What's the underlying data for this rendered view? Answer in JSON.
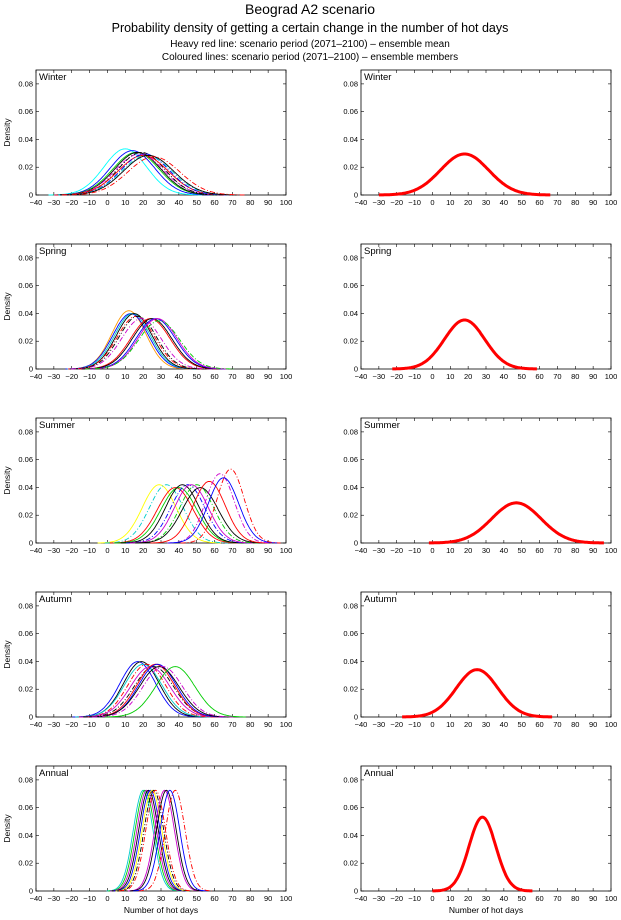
{
  "header": {
    "title": "Beograd A2 scenario",
    "subtitle": "Probability density of getting a certain change in the number of hot days",
    "note1": "Heavy red line: scenario period (2071–2100) – ensemble mean",
    "note2": "Coloured lines: scenario period (2071–2100) – ensemble members"
  },
  "axes": {
    "xlabel": "Number of hot days",
    "ylabel": "Density",
    "xlim": [
      -40,
      100
    ],
    "ylim": [
      0,
      0.09
    ],
    "xticks": [
      "-40",
      "-30",
      "-20",
      "-10",
      "0",
      "10",
      "20",
      "30",
      "40",
      "50",
      "60",
      "70",
      "80",
      "90",
      "100"
    ],
    "yticks": [
      "0",
      "0.02",
      "0.04",
      "0.06",
      "0.08"
    ]
  },
  "colors": {
    "mean_line": "#ff0000",
    "member_colors": [
      "#0000ff",
      "#00cc00",
      "#ff0000",
      "#00cccc",
      "#cc00cc",
      "#cccc00",
      "#000000"
    ]
  },
  "chart_data": [
    {
      "type": "line",
      "panel": "Winter ensemble members",
      "season_label": "Winter",
      "series": [
        {
          "mean": 10,
          "sd": 12,
          "color": "#00ffff",
          "style": "solid"
        },
        {
          "mean": 14,
          "sd": 12.5,
          "color": "#0000ff",
          "style": "solid"
        },
        {
          "mean": 16,
          "sd": 13,
          "color": "#00cc00",
          "style": "solid"
        },
        {
          "mean": 17,
          "sd": 13,
          "color": "#000000",
          "style": "solid"
        },
        {
          "mean": 18,
          "sd": 13.5,
          "color": "#cc00cc",
          "style": "dashdot"
        },
        {
          "mean": 19,
          "sd": 13,
          "color": "#000000",
          "style": "dashdot"
        },
        {
          "mean": 20,
          "sd": 14,
          "color": "#ff0000",
          "style": "solid"
        },
        {
          "mean": 21,
          "sd": 13.5,
          "color": "#0000ff",
          "style": "dashdot"
        },
        {
          "mean": 22,
          "sd": 14,
          "color": "#00cccc",
          "style": "dashdot"
        },
        {
          "mean": 23,
          "sd": 14,
          "color": "#000000",
          "style": "solid"
        },
        {
          "mean": 26,
          "sd": 14.5,
          "color": "#ff0000",
          "style": "dashdot"
        }
      ]
    },
    {
      "type": "line",
      "panel": "Winter ensemble mean",
      "season_label": "Winter",
      "series": [
        {
          "mean": 18,
          "sd": 13.5,
          "color": "#ff0000",
          "style": "heavy"
        }
      ]
    },
    {
      "type": "line",
      "panel": "Spring ensemble members",
      "season_label": "Spring",
      "series": [
        {
          "mean": 12,
          "sd": 9.5,
          "color": "#ff9900",
          "style": "solid"
        },
        {
          "mean": 13,
          "sd": 10,
          "color": "#0000ff",
          "style": "solid"
        },
        {
          "mean": 14,
          "sd": 10,
          "color": "#00cccc",
          "style": "solid"
        },
        {
          "mean": 15,
          "sd": 10,
          "color": "#000000",
          "style": "solid"
        },
        {
          "mean": 16,
          "sd": 10.5,
          "color": "#ff0000",
          "style": "dashdot"
        },
        {
          "mean": 17,
          "sd": 10.5,
          "color": "#000000",
          "style": "dashdot"
        },
        {
          "mean": 19,
          "sd": 11,
          "color": "#cc00cc",
          "style": "dashdot"
        },
        {
          "mean": 24,
          "sd": 11,
          "color": "#ff0000",
          "style": "solid"
        },
        {
          "mean": 25,
          "sd": 11,
          "color": "#000000",
          "style": "solid"
        },
        {
          "mean": 27,
          "sd": 11,
          "color": "#0000ff",
          "style": "solid"
        },
        {
          "mean": 28,
          "sd": 11,
          "color": "#cc00cc",
          "style": "solid"
        },
        {
          "mean": 29,
          "sd": 11.5,
          "color": "#00cc00",
          "style": "dashdot"
        }
      ]
    },
    {
      "type": "line",
      "panel": "Spring ensemble mean",
      "season_label": "Spring",
      "series": [
        {
          "mean": 18,
          "sd": 11.3,
          "color": "#ff0000",
          "style": "heavy"
        }
      ]
    },
    {
      "type": "line",
      "panel": "Summer ensemble members",
      "season_label": "Summer",
      "series": [
        {
          "mean": 29,
          "sd": 9.5,
          "color": "#ffff00",
          "style": "solid"
        },
        {
          "mean": 33,
          "sd": 9.5,
          "color": "#00cccc",
          "style": "dashdot"
        },
        {
          "mean": 38,
          "sd": 10,
          "color": "#ff0000",
          "style": "solid"
        },
        {
          "mean": 40,
          "sd": 10,
          "color": "#00cc00",
          "style": "solid"
        },
        {
          "mean": 42,
          "sd": 9.5,
          "color": "#000000",
          "style": "solid"
        },
        {
          "mean": 45,
          "sd": 9.5,
          "color": "#0000ff",
          "style": "dashdot"
        },
        {
          "mean": 47,
          "sd": 9.5,
          "color": "#cc00cc",
          "style": "solid"
        },
        {
          "mean": 50,
          "sd": 9.5,
          "color": "#00cc00",
          "style": "dashdot"
        },
        {
          "mean": 52,
          "sd": 10,
          "color": "#000000",
          "style": "solid"
        },
        {
          "mean": 57,
          "sd": 9,
          "color": "#ff0000",
          "style": "solid"
        },
        {
          "mean": 63,
          "sd": 8,
          "color": "#cc00cc",
          "style": "dashdot"
        },
        {
          "mean": 65,
          "sd": 8.5,
          "color": "#0000ff",
          "style": "solid"
        },
        {
          "mean": 69,
          "sd": 7.5,
          "color": "#ff0000",
          "style": "dashdot"
        }
      ]
    },
    {
      "type": "line",
      "panel": "Summer ensemble mean",
      "season_label": "Summer",
      "series": [
        {
          "mean": 47,
          "sd": 13.8,
          "color": "#ff0000",
          "style": "heavy"
        }
      ]
    },
    {
      "type": "line",
      "panel": "Autumn ensemble members",
      "season_label": "Autumn",
      "series": [
        {
          "mean": 17,
          "sd": 10,
          "color": "#0000ff",
          "style": "solid"
        },
        {
          "mean": 19,
          "sd": 10,
          "color": "#000000",
          "style": "solid"
        },
        {
          "mean": 20,
          "sd": 10.5,
          "color": "#00cccc",
          "style": "solid"
        },
        {
          "mean": 22,
          "sd": 10.5,
          "color": "#ff0000",
          "style": "dashdot"
        },
        {
          "mean": 24,
          "sd": 11,
          "color": "#cc00cc",
          "style": "solid"
        },
        {
          "mean": 26,
          "sd": 11,
          "color": "#000000",
          "style": "dashdot"
        },
        {
          "mean": 27,
          "sd": 10.5,
          "color": "#ff0000",
          "style": "solid"
        },
        {
          "mean": 28,
          "sd": 10.5,
          "color": "#0000ff",
          "style": "solid"
        },
        {
          "mean": 29,
          "sd": 11,
          "color": "#000000",
          "style": "solid"
        },
        {
          "mean": 31,
          "sd": 11,
          "color": "#cc00cc",
          "style": "dashdot"
        },
        {
          "mean": 38,
          "sd": 11,
          "color": "#00cc00",
          "style": "solid"
        }
      ]
    },
    {
      "type": "line",
      "panel": "Autumn ensemble mean",
      "season_label": "Autumn",
      "series": [
        {
          "mean": 25,
          "sd": 11.7,
          "color": "#ff0000",
          "style": "heavy"
        }
      ]
    },
    {
      "type": "line",
      "panel": "Annual ensemble members",
      "season_label": "Annual",
      "series": [
        {
          "mean": 20,
          "sd": 5.5,
          "color": "#00cccc",
          "style": "solid"
        },
        {
          "mean": 21,
          "sd": 5.5,
          "color": "#00cc00",
          "style": "solid"
        },
        {
          "mean": 22,
          "sd": 5.5,
          "color": "#cc00cc",
          "style": "solid"
        },
        {
          "mean": 23,
          "sd": 5.5,
          "color": "#000000",
          "style": "solid"
        },
        {
          "mean": 24,
          "sd": 5.5,
          "color": "#0000ff",
          "style": "solid"
        },
        {
          "mean": 25,
          "sd": 5.5,
          "color": "#ffff00",
          "style": "solid"
        },
        {
          "mean": 26,
          "sd": 5.5,
          "color": "#000000",
          "style": "dashdot"
        },
        {
          "mean": 27,
          "sd": 5.5,
          "color": "#ff0000",
          "style": "dashdot"
        },
        {
          "mean": 32,
          "sd": 5.5,
          "color": "#cc00cc",
          "style": "solid"
        },
        {
          "mean": 33,
          "sd": 5.5,
          "color": "#000000",
          "style": "solid"
        },
        {
          "mean": 35,
          "sd": 5.5,
          "color": "#0000ff",
          "style": "solid"
        },
        {
          "mean": 38,
          "sd": 5.5,
          "color": "#ff0000",
          "style": "dashdot"
        }
      ]
    },
    {
      "type": "line",
      "panel": "Annual ensemble mean",
      "season_label": "Annual",
      "series": [
        {
          "mean": 28,
          "sd": 7.5,
          "color": "#ff0000",
          "style": "heavy"
        }
      ]
    }
  ]
}
